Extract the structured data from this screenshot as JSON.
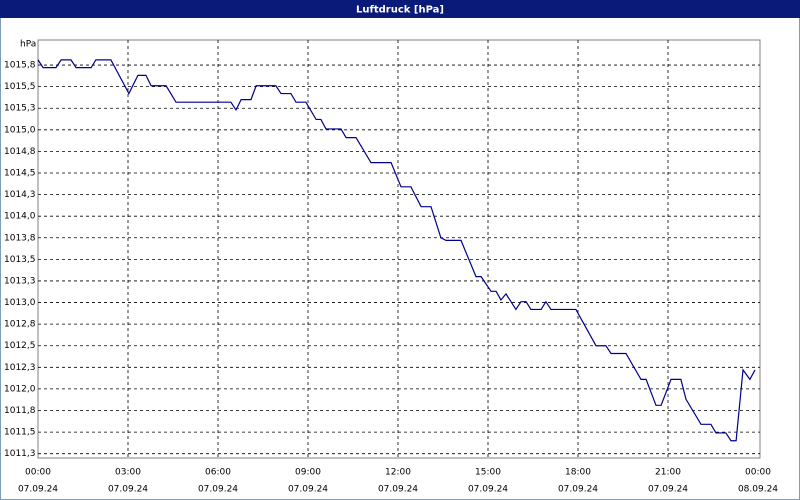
{
  "chart_data": {
    "type": "line",
    "title": "Luftdruck [hPa]",
    "y_unit": "hPa",
    "xlim": [
      0,
      24
    ],
    "ylim": [
      1011.2,
      1016.04
    ],
    "grid": true,
    "grid_style": "dashed",
    "xticks": [
      {
        "value": 0,
        "label": "00:00"
      },
      {
        "value": 3,
        "label": "03:00"
      },
      {
        "value": 6,
        "label": "06:00"
      },
      {
        "value": 9,
        "label": "09:00"
      },
      {
        "value": 12,
        "label": "12:00"
      },
      {
        "value": 15,
        "label": "15:00"
      },
      {
        "value": 18,
        "label": "18:00"
      },
      {
        "value": 21,
        "label": "21:00"
      },
      {
        "value": 24,
        "label": "00:00"
      }
    ],
    "xtick_dates": [
      "07.09.24",
      "07.09.24",
      "07.09.24",
      "07.09.24",
      "07.09.24",
      "07.09.24",
      "07.09.24",
      "07.09.24",
      "08.09.24"
    ],
    "yticks": [
      {
        "value": 1015.75,
        "label": "1015,8"
      },
      {
        "value": 1015.5,
        "label": "1015,5"
      },
      {
        "value": 1015.25,
        "label": "1015,3"
      },
      {
        "value": 1015.0,
        "label": "1015,0"
      },
      {
        "value": 1014.75,
        "label": "1014,8"
      },
      {
        "value": 1014.5,
        "label": "1014,5"
      },
      {
        "value": 1014.25,
        "label": "1014,3"
      },
      {
        "value": 1014.0,
        "label": "1014,0"
      },
      {
        "value": 1013.75,
        "label": "1013,8"
      },
      {
        "value": 1013.5,
        "label": "1013,5"
      },
      {
        "value": 1013.25,
        "label": "1013,3"
      },
      {
        "value": 1013.0,
        "label": "1013,0"
      },
      {
        "value": 1012.75,
        "label": "1012,8"
      },
      {
        "value": 1012.5,
        "label": "1012,5"
      },
      {
        "value": 1012.25,
        "label": "1012,3"
      },
      {
        "value": 1012.0,
        "label": "1012,0"
      },
      {
        "value": 1011.75,
        "label": "1011,8"
      },
      {
        "value": 1011.5,
        "label": "1011,5"
      },
      {
        "value": 1011.25,
        "label": "1011,3"
      }
    ],
    "color": "#000090",
    "x": [
      0,
      0.17,
      0.6,
      0.77,
      1.1,
      1.27,
      1.77,
      1.93,
      2.43,
      3.03,
      3.33,
      3.6,
      3.77,
      4.27,
      4.6,
      6.43,
      6.6,
      6.77,
      7.1,
      7.27,
      7.93,
      8.1,
      8.43,
      8.6,
      8.93,
      9.27,
      9.43,
      9.6,
      10.1,
      10.27,
      10.6,
      11.1,
      11.77,
      12.1,
      12.43,
      12.77,
      13.1,
      13.43,
      13.6,
      14.1,
      14.6,
      14.77,
      15.1,
      15.27,
      15.43,
      15.6,
      15.93,
      16.1,
      16.27,
      16.43,
      16.77,
      16.93,
      17.1,
      17.93,
      18.6,
      18.93,
      19.1,
      19.6,
      20.1,
      20.27,
      20.6,
      20.77,
      21.1,
      21.43,
      21.6,
      22.1,
      22.43,
      22.6,
      22.93,
      23.1,
      23.27,
      23.5,
      23.73,
      23.9
    ],
    "values": [
      1015.81,
      1015.72,
      1015.72,
      1015.81,
      1015.81,
      1015.72,
      1015.72,
      1015.81,
      1015.81,
      1015.42,
      1015.63,
      1015.63,
      1015.51,
      1015.51,
      1015.32,
      1015.32,
      1015.23,
      1015.35,
      1015.35,
      1015.51,
      1015.51,
      1015.42,
      1015.42,
      1015.32,
      1015.32,
      1015.12,
      1015.12,
      1015.01,
      1015.01,
      1014.91,
      1014.91,
      1014.62,
      1014.62,
      1014.34,
      1014.34,
      1014.11,
      1014.11,
      1013.75,
      1013.72,
      1013.72,
      1013.3,
      1013.3,
      1013.13,
      1013.13,
      1013.03,
      1013.1,
      1012.92,
      1013.01,
      1013.01,
      1012.92,
      1012.92,
      1013.01,
      1012.92,
      1012.92,
      1012.5,
      1012.5,
      1012.41,
      1012.41,
      1012.11,
      1012.11,
      1011.81,
      1011.81,
      1012.11,
      1012.11,
      1011.88,
      1011.59,
      1011.59,
      1011.49,
      1011.49,
      1011.4,
      1011.4,
      1012.22,
      1012.11,
      1012.22
    ]
  }
}
